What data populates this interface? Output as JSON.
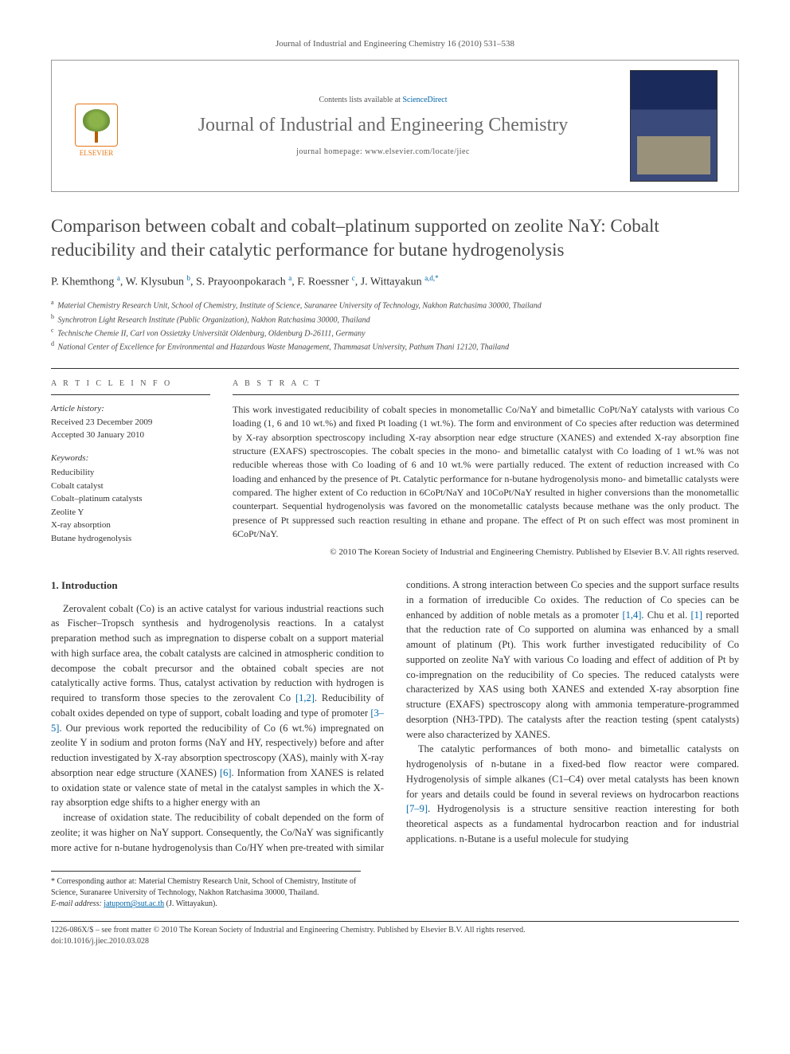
{
  "running_header": "Journal of Industrial and Engineering Chemistry 16 (2010) 531–538",
  "header": {
    "contents_prefix": "Contents lists available at ",
    "contents_link": "ScienceDirect",
    "journal_name": "Journal of Industrial and Engineering Chemistry",
    "homepage_prefix": "journal homepage: ",
    "homepage_url": "www.elsevier.com/locate/jiec",
    "publisher_logo_label": "ELSEVIER"
  },
  "title": "Comparison between cobalt and cobalt–platinum supported on zeolite NaY: Cobalt reducibility and their catalytic performance for butane hydrogenolysis",
  "authors_html": "P. Khemthong <sup>a</sup>, W. Klysubun <sup>b</sup>, S. Prayoonpokarach <sup>a</sup>, F. Roessner <sup>c</sup>, J. Wittayakun <sup>a,d,*</sup>",
  "affiliations": [
    {
      "sup": "a",
      "text": "Material Chemistry Research Unit, School of Chemistry, Institute of Science, Suranaree University of Technology, Nakhon Ratchasima 30000, Thailand"
    },
    {
      "sup": "b",
      "text": "Synchrotron Light Research Institute (Public Organization), Nakhon Ratchasima 30000, Thailand"
    },
    {
      "sup": "c",
      "text": "Technische Chemie II, Carl von Ossietzky Universität Oldenburg, Oldenburg D-26111, Germany"
    },
    {
      "sup": "d",
      "text": "National Center of Excellence for Environmental and Hazardous Waste Management, Thammasat University, Pathum Thani 12120, Thailand"
    }
  ],
  "info": {
    "section_label": "A R T I C L E   I N F O",
    "history_label": "Article history:",
    "received": "Received 23 December 2009",
    "accepted": "Accepted 30 January 2010",
    "keywords_label": "Keywords:",
    "keywords": [
      "Reducibility",
      "Cobalt catalyst",
      "Cobalt–platinum catalysts",
      "Zeolite Y",
      "X-ray absorption",
      "Butane hydrogenolysis"
    ]
  },
  "abstract": {
    "section_label": "A B S T R A C T",
    "text": "This work investigated reducibility of cobalt species in monometallic Co/NaY and bimetallic CoPt/NaY catalysts with various Co loading (1, 6 and 10 wt.%) and fixed Pt loading (1 wt.%). The form and environment of Co species after reduction was determined by X-ray absorption spectroscopy including X-ray absorption near edge structure (XANES) and extended X-ray absorption fine structure (EXAFS) spectroscopies. The cobalt species in the mono- and bimetallic catalyst with Co loading of 1 wt.% was not reducible whereas those with Co loading of 6 and 10 wt.% were partially reduced. The extent of reduction increased with Co loading and enhanced by the presence of Pt. Catalytic performance for n-butane hydrogenolysis mono- and bimetallic catalysts were compared. The higher extent of Co reduction in 6CoPt/NaY and 10CoPt/NaY resulted in higher conversions than the monometallic counterpart. Sequential hydrogenolysis was favored on the monometallic catalysts because methane was the only product. The presence of Pt suppressed such reaction resulting in ethane and propane. The effect of Pt on such effect was most prominent in 6CoPt/NaY.",
    "copyright": "© 2010 The Korean Society of Industrial and Engineering Chemistry. Published by Elsevier B.V. All rights reserved."
  },
  "body": {
    "section_heading": "1. Introduction",
    "para1": "Zerovalent cobalt (Co) is an active catalyst for various industrial reactions such as Fischer–Tropsch synthesis and hydrogenolysis reactions. In a catalyst preparation method such as impregnation to disperse cobalt on a support material with high surface area, the cobalt catalysts are calcined in atmospheric condition to decompose the cobalt precursor and the obtained cobalt species are not catalytically active forms. Thus, catalyst activation by reduction with hydrogen is required to transform those species to the zerovalent Co [1,2]. Reducibility of cobalt oxides depended on type of support, cobalt loading and type of promoter [3–5]. Our previous work reported the reducibility of Co (6 wt.%) impregnated on zeolite Y in sodium and proton forms (NaY and HY, respectively) before and after reduction investigated by X-ray absorption spectroscopy (XAS), mainly with X-ray absorption near edge structure (XANES) [6]. Information from XANES is related to oxidation state or valence state of metal in the catalyst samples in which the X-ray absorption edge shifts to a higher energy with an",
    "para2": "increase of oxidation state. The reducibility of cobalt depended on the form of zeolite; it was higher on NaY support. Consequently, the Co/NaY was significantly more active for n-butane hydrogenolysis than Co/HY when pre-treated with similar conditions. A strong interaction between Co species and the support surface results in a formation of irreducible Co oxides. The reduction of Co species can be enhanced by addition of noble metals as a promoter [1,4]. Chu et al. [1] reported that the reduction rate of Co supported on alumina was enhanced by a small amount of platinum (Pt). This work further investigated reducibility of Co supported on zeolite NaY with various Co loading and effect of addition of Pt by co-impregnation on the reducibility of Co species. The reduced catalysts were characterized by XAS using both XANES and extended X-ray absorption fine structure (EXAFS) spectroscopy along with ammonia temperature-programmed desorption (NH3-TPD). The catalysts after the reaction testing (spent catalysts) were also characterized by XANES.",
    "para3": "The catalytic performances of both mono- and bimetallic catalysts on hydrogenolysis of n-butane in a fixed-bed flow reactor were compared. Hydrogenolysis of simple alkanes (C1–C4) over metal catalysts has been known for years and details could be found in several reviews on hydrocarbon reactions [7–9]. Hydrogenolysis is a structure sensitive reaction interesting for both theoretical aspects as a fundamental hydrocarbon reaction and for industrial applications. n-Butane is a useful molecule for studying"
  },
  "corr": {
    "note": "* Corresponding author at: Material Chemistry Research Unit, School of Chemistry, Institute of Science, Suranaree University of Technology, Nakhon Ratchasima 30000, Thailand.",
    "email_label": "E-mail address: ",
    "email": "jatuporn@sut.ac.th",
    "email_name": " (J. Wittayakun)."
  },
  "footer": {
    "line1": "1226-086X/$ – see front matter © 2010 The Korean Society of Industrial and Engineering Chemistry. Published by Elsevier B.V. All rights reserved.",
    "line2": "doi:10.1016/j.jiec.2010.03.028"
  },
  "colors": {
    "link": "#0066aa",
    "elsevier_orange": "#e67817",
    "title_gray": "#4a4a4a",
    "journal_gray": "#6a6a6a"
  }
}
